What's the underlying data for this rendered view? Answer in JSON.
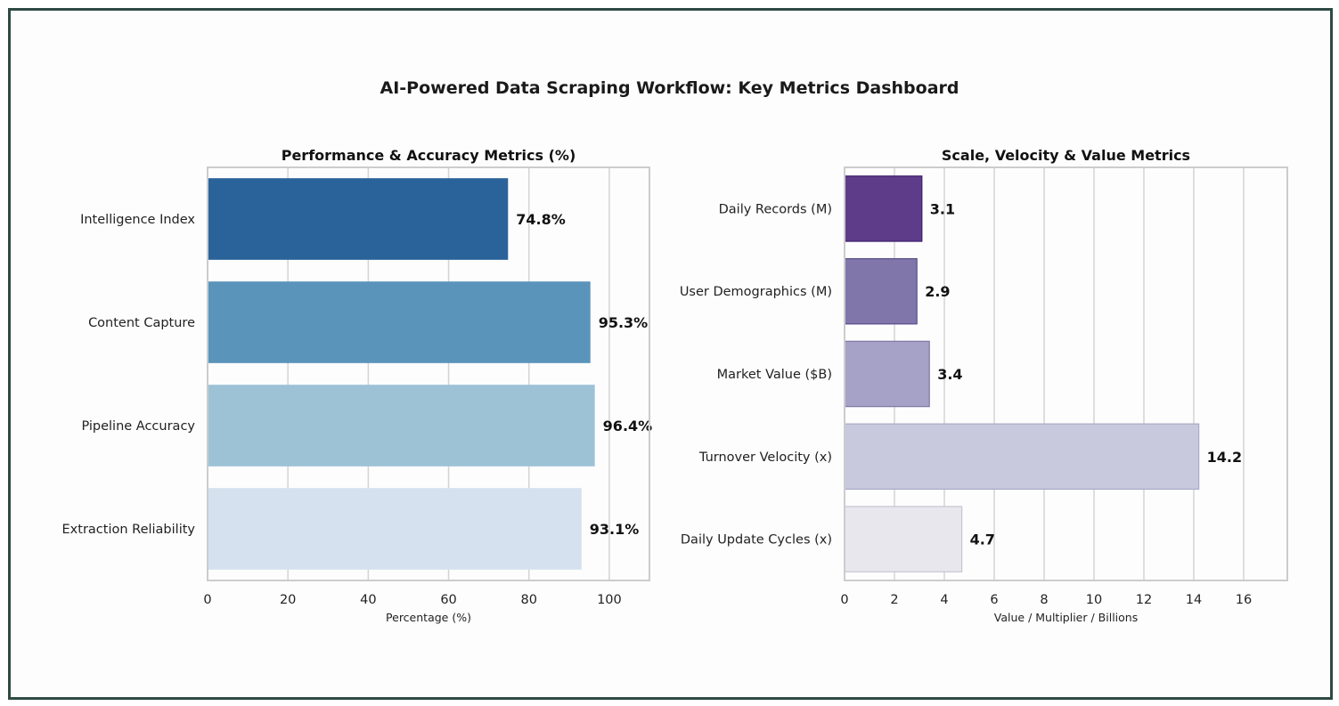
{
  "title": "AI-Powered Data Scraping Workflow: Key Metrics Dashboard",
  "chart_data": [
    {
      "type": "bar",
      "orientation": "horizontal",
      "title": "Performance & Accuracy Metrics (%)",
      "xlabel": "Percentage (%)",
      "ylabel": "",
      "xlim": [
        0,
        110
      ],
      "xticks": [
        0,
        20,
        40,
        60,
        80,
        100
      ],
      "grid": true,
      "categories": [
        "Intelligence Index",
        "Content Capture",
        "Pipeline Accuracy",
        "Extraction Reliability"
      ],
      "values": [
        74.8,
        95.3,
        96.4,
        93.1
      ],
      "value_labels": [
        "74.8%",
        "95.3%",
        "96.4%",
        "93.1%"
      ],
      "colors": [
        "#2a6399",
        "#5b94bb",
        "#9dc2d6",
        "#d5e1ee"
      ]
    },
    {
      "type": "bar",
      "orientation": "horizontal",
      "title": "Scale, Velocity & Value Metrics",
      "xlabel": "Value / Multiplier / Billions",
      "ylabel": "",
      "xlim": [
        0,
        17.75
      ],
      "xticks": [
        0,
        2,
        4,
        6,
        8,
        10,
        12,
        14,
        16
      ],
      "grid": true,
      "categories": [
        "Daily Records (M)",
        "User Demographics (M)",
        "Market Value ($B)",
        "Turnover Velocity (x)",
        "Daily Update Cycles (x)"
      ],
      "values": [
        3.1,
        2.9,
        3.4,
        14.2,
        4.7
      ],
      "value_labels": [
        "3.1",
        "2.9",
        "3.4",
        "14.2",
        "4.7"
      ],
      "colors": [
        "#5e3c89",
        "#8076aa",
        "#a6a1c6",
        "#c9c9de",
        "#e8e7ee"
      ],
      "edge_colors": [
        "#3f1f6e",
        "#5a4f8a",
        "#7e78a4",
        "#a9a9c4",
        "#c6c5d2"
      ]
    }
  ]
}
